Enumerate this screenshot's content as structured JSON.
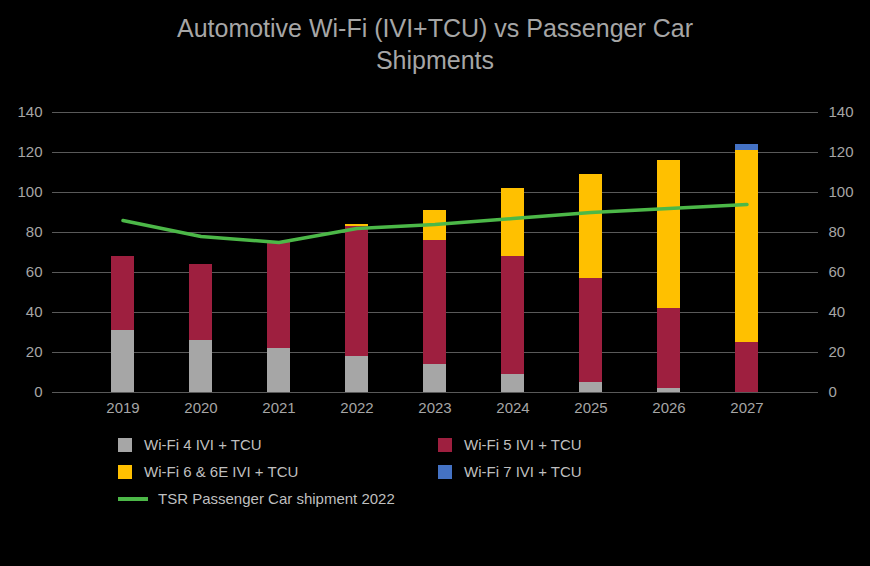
{
  "chart_data": {
    "type": "bar",
    "title": "Automotive Wi-Fi (IVI+TCU) vs Passenger Car Shipments",
    "categories": [
      "2019",
      "2020",
      "2021",
      "2022",
      "2023",
      "2024",
      "2025",
      "2026",
      "2027"
    ],
    "stacked": true,
    "grid": true,
    "legend": "bottom",
    "ylim": [
      0,
      140
    ],
    "yticks": [
      0,
      20,
      40,
      60,
      80,
      100,
      120,
      140
    ],
    "y2lim": [
      0,
      140
    ],
    "y2ticks": [
      0,
      20,
      40,
      60,
      80,
      100,
      120,
      140
    ],
    "series": [
      {
        "name": "Wi-Fi 4 IVI + TCU",
        "color": "#a6a6a6",
        "values": [
          31,
          26,
          22,
          18,
          14,
          9,
          5,
          2,
          0
        ]
      },
      {
        "name": "Wi-Fi 5 IVI + TCU",
        "color": "#9e1f3f",
        "values": [
          37,
          38,
          53,
          65,
          62,
          59,
          52,
          40,
          25
        ]
      },
      {
        "name": "Wi-Fi 6 & 6E IVI + TCU",
        "color": "#ffc000",
        "values": [
          0,
          0,
          0,
          1,
          15,
          34,
          52,
          74,
          96
        ]
      },
      {
        "name": "Wi-Fi 7 IVI + TCU",
        "color": "#4472c4",
        "values": [
          0,
          0,
          0,
          0,
          0,
          0,
          0,
          0,
          3
        ]
      },
      {
        "name": "TSR Passenger Car shipment 2022",
        "type": "line",
        "axis": "y2",
        "color": "#4cb848",
        "values": [
          86,
          78,
          75,
          82,
          84,
          87,
          90,
          92,
          94
        ]
      }
    ]
  }
}
